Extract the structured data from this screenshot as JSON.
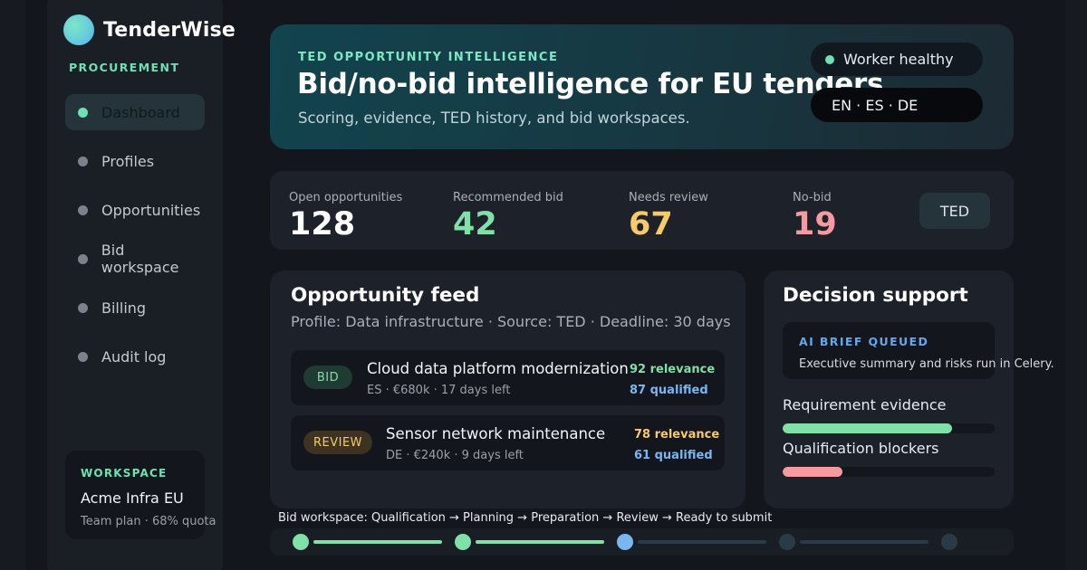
{
  "brand": {
    "name": "TenderWise"
  },
  "sidebar": {
    "section_label": "PROCUREMENT",
    "items": [
      {
        "label": "Dashboard",
        "active": true
      },
      {
        "label": "Profiles",
        "active": false
      },
      {
        "label": "Opportunities",
        "active": false
      },
      {
        "label": "Bid workspace",
        "active": false
      },
      {
        "label": "Billing",
        "active": false
      },
      {
        "label": "Audit log",
        "active": false
      }
    ],
    "workspace": {
      "label": "WORKSPACE",
      "name": "Acme Infra EU",
      "plan": "Team plan · 68% quota"
    }
  },
  "hero": {
    "eyebrow": "TED OPPORTUNITY INTELLIGENCE",
    "title": "Bid/no-bid intelligence for EU tenders",
    "subtitle": "Scoring, evidence, TED history, and bid workspaces.",
    "status": "Worker healthy",
    "languages": "EN · ES · DE"
  },
  "stats": {
    "items": [
      {
        "label": "Open opportunities",
        "value": "128",
        "color": "#ffffff"
      },
      {
        "label": "Recommended bid",
        "value": "42",
        "color": "#7fe0a8"
      },
      {
        "label": "Needs review",
        "value": "67",
        "color": "#f6c96a"
      },
      {
        "label": "No-bid",
        "value": "19",
        "color": "#f59aa0"
      }
    ],
    "source_button": "TED"
  },
  "feed": {
    "title": "Opportunity feed",
    "subtitle": "Profile: Data infrastructure · Source: TED · Deadline: 30 days",
    "items": [
      {
        "badge": "BID",
        "title": "Cloud data platform modernization",
        "meta": "ES · €680k · 17 days left",
        "relevance": "92 relevance",
        "qualified": "87 qualified",
        "badge_color": "#7fe0a8",
        "badge_bg": "#1f3b33",
        "relevance_color": "#7fe0a8"
      },
      {
        "badge": "REVIEW",
        "title": "Sensor network maintenance",
        "meta": "DE · €240k · 9 days left",
        "relevance": "78 relevance",
        "qualified": "61 qualified",
        "badge_color": "#f6c96a",
        "badge_bg": "#3d3320",
        "relevance_color": "#f6c96a"
      }
    ]
  },
  "decision": {
    "title": "Decision support",
    "brief_label": "AI BRIEF QUEUED",
    "brief_text": "Executive summary and risks run in Celery.",
    "bars": [
      {
        "label": "Requirement evidence",
        "value": 0.8,
        "color": "#7fe0a8"
      },
      {
        "label": "Qualification blockers",
        "value": 0.28,
        "color": "#f59aa0"
      }
    ]
  },
  "pipeline": {
    "caption": "Bid workspace: Qualification → Planning → Preparation → Review → Ready to submit",
    "stages": [
      {
        "name": "Qualification",
        "state": "done"
      },
      {
        "name": "Planning",
        "state": "done"
      },
      {
        "name": "Preparation",
        "state": "current"
      },
      {
        "name": "Review",
        "state": "pending"
      },
      {
        "name": "Ready to submit",
        "state": "pending"
      }
    ],
    "colors": {
      "done": "#7fe0a8",
      "current": "#7ab6f2",
      "pending": "#2b3a47"
    }
  }
}
